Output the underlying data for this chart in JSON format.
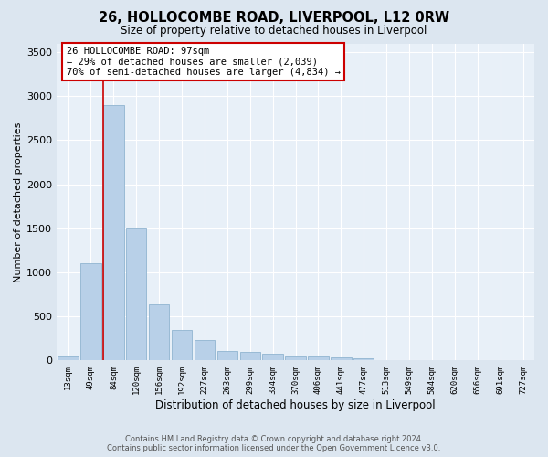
{
  "title": "26, HOLLOCOMBE ROAD, LIVERPOOL, L12 0RW",
  "subtitle": "Size of property relative to detached houses in Liverpool",
  "xlabel": "Distribution of detached houses by size in Liverpool",
  "ylabel": "Number of detached properties",
  "footer_line1": "Contains HM Land Registry data © Crown copyright and database right 2024.",
  "footer_line2": "Contains public sector information licensed under the Open Government Licence v3.0.",
  "bar_values": [
    50,
    1100,
    2900,
    1500,
    640,
    350,
    230,
    110,
    95,
    75,
    40,
    40,
    30,
    20,
    0,
    0,
    0,
    0,
    0,
    0,
    0
  ],
  "tick_labels": [
    "13sqm",
    "49sqm",
    "84sqm",
    "120sqm",
    "156sqm",
    "192sqm",
    "227sqm",
    "263sqm",
    "299sqm",
    "334sqm",
    "370sqm",
    "406sqm",
    "441sqm",
    "477sqm",
    "513sqm",
    "549sqm",
    "584sqm",
    "620sqm",
    "656sqm",
    "691sqm",
    "727sqm"
  ],
  "bar_color": "#b8d0e8",
  "bar_edge_color": "#90b4d0",
  "marker_bar_index": 2,
  "marker_color": "#cc0000",
  "annotation_text": "26 HOLLOCOMBE ROAD: 97sqm\n← 29% of detached houses are smaller (2,039)\n70% of semi-detached houses are larger (4,834) →",
  "annotation_box_color": "#ffffff",
  "annotation_box_edge": "#cc0000",
  "bg_color": "#dce6f0",
  "plot_bg_color": "#e8f0f8",
  "ylim": [
    0,
    3600
  ],
  "yticks": [
    0,
    500,
    1000,
    1500,
    2000,
    2500,
    3000,
    3500
  ]
}
